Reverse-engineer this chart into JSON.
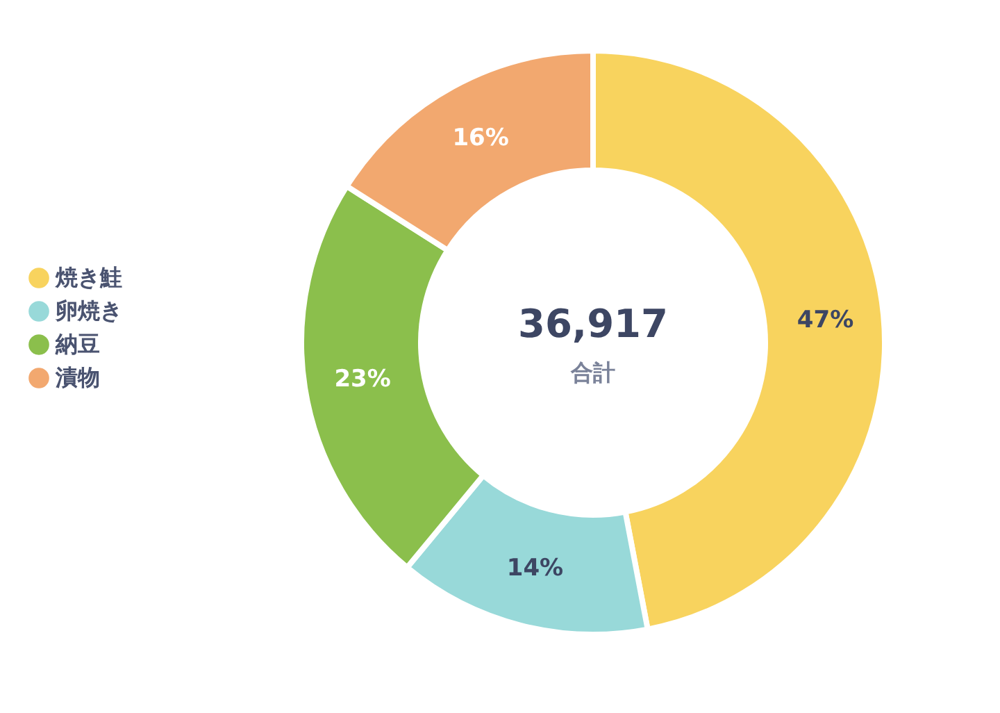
{
  "chart_data": {
    "type": "donut",
    "categories": [
      "焼き鮭",
      "卵焼き",
      "納豆",
      "漬物"
    ],
    "values": [
      47,
      14,
      23,
      16
    ],
    "colors": [
      "#f8d35e",
      "#98d9d9",
      "#8bbf4c",
      "#f2a86f"
    ],
    "value_labels": [
      "47%",
      "14%",
      "23%",
      "16%"
    ],
    "annotations": [
      "36,917",
      "合計"
    ],
    "legend": "left"
  }
}
